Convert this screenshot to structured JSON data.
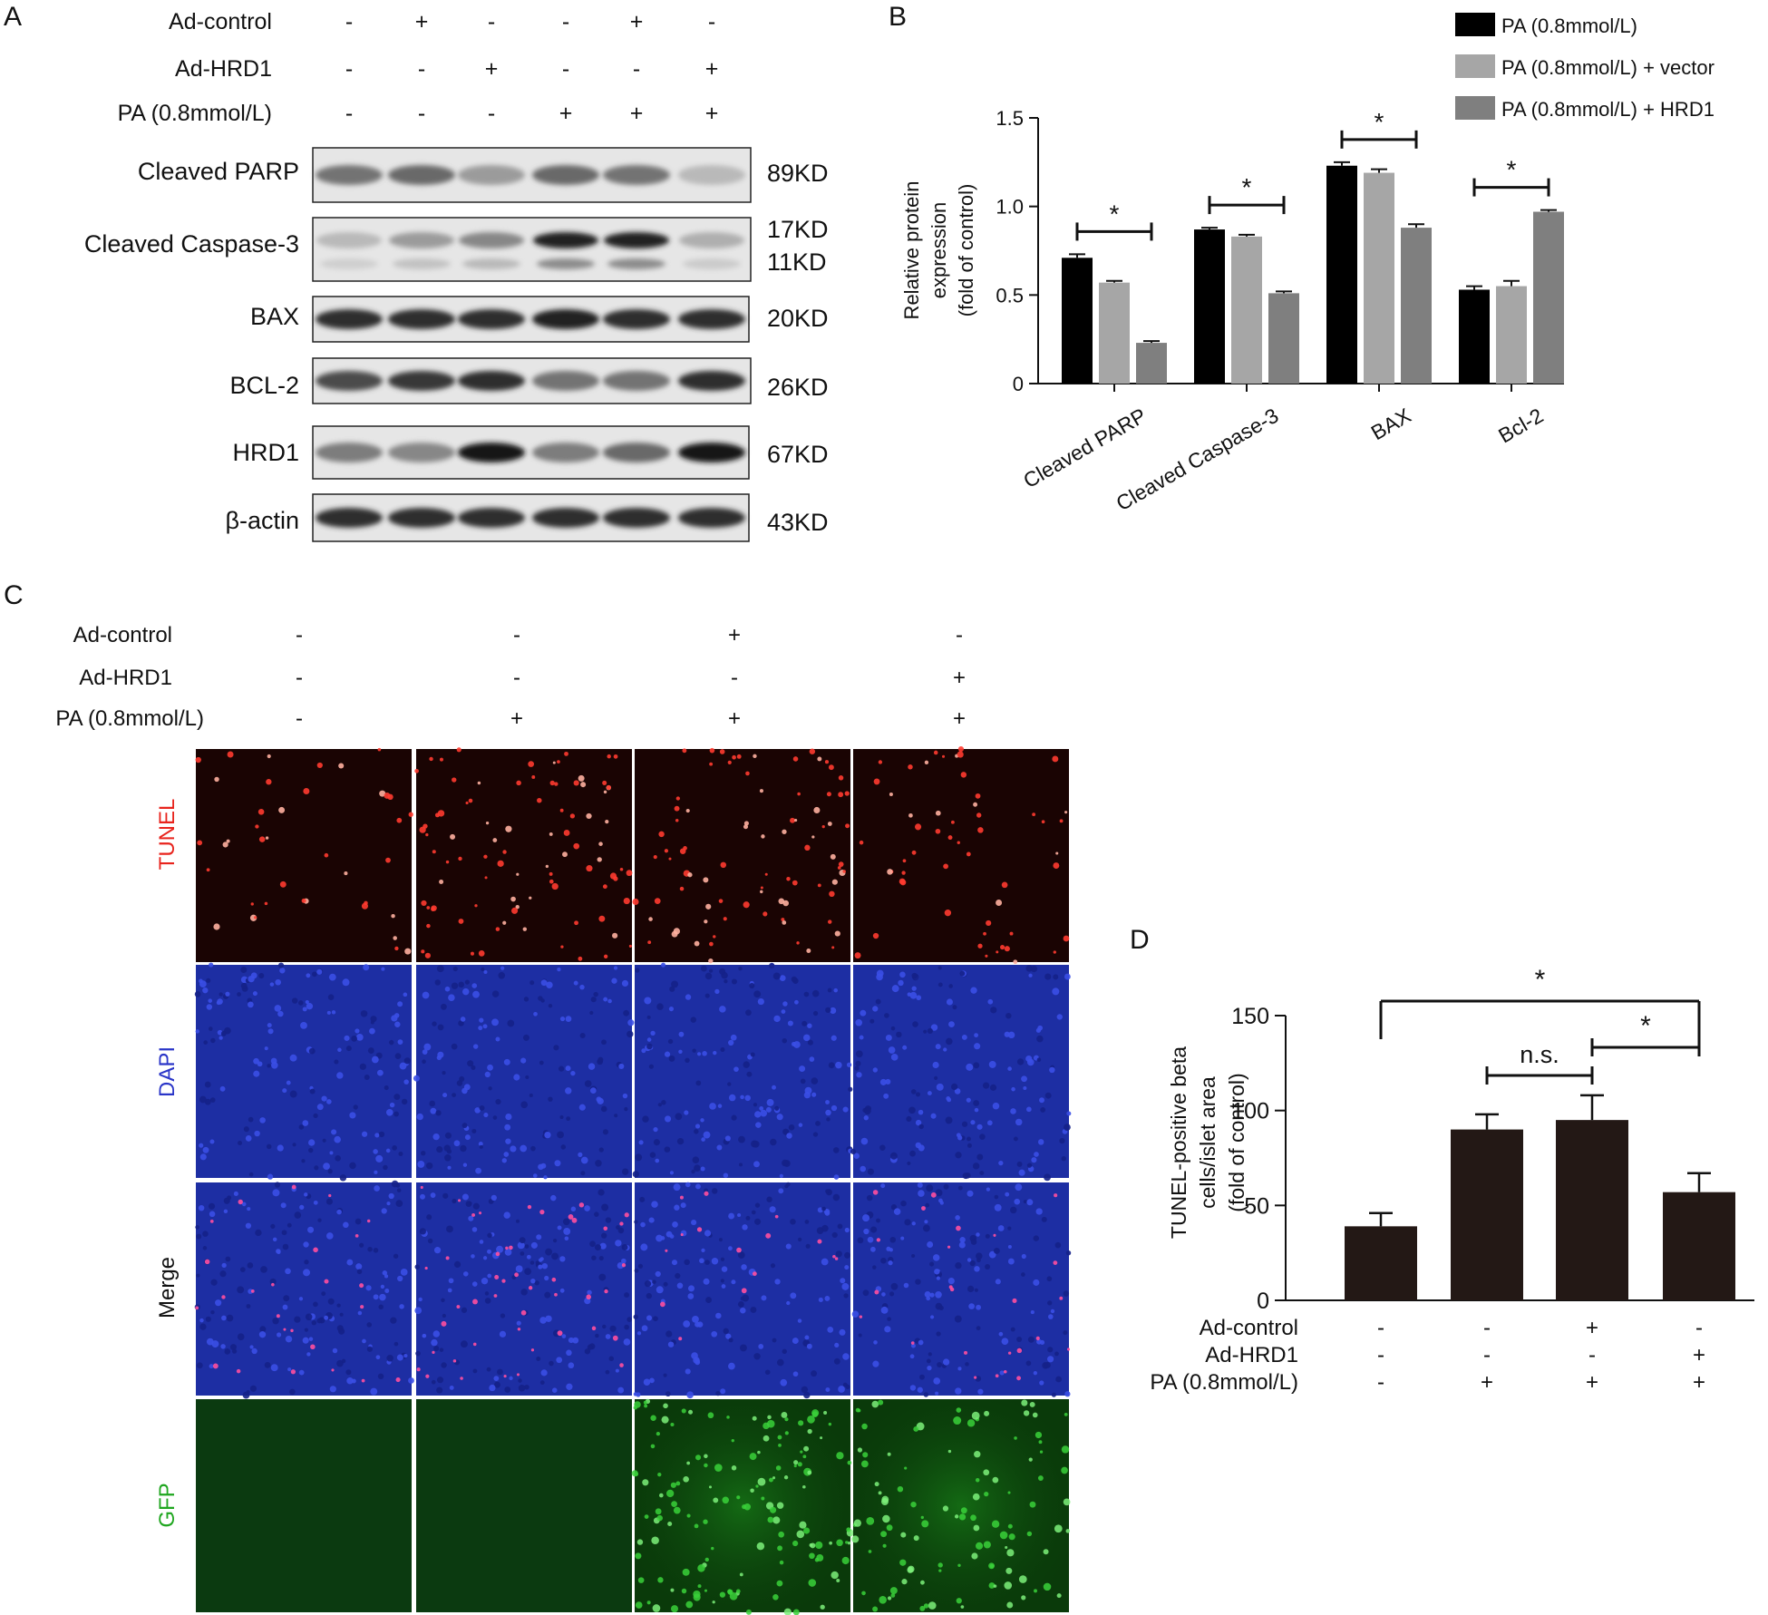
{
  "panels": {
    "a": "A",
    "b": "B",
    "c": "C",
    "d": "D"
  },
  "blot": {
    "conditions": [
      {
        "label": "Ad-control",
        "signs": [
          "-",
          "+",
          "-",
          "-",
          "+",
          "-"
        ]
      },
      {
        "label": "Ad-HRD1",
        "signs": [
          "-",
          "-",
          "+",
          "-",
          "-",
          "+"
        ]
      },
      {
        "label": "PA (0.8mmol/L)",
        "signs": [
          "-",
          "-",
          "-",
          "+",
          "+",
          "+"
        ]
      }
    ],
    "rows": [
      {
        "label": "Cleaved PARP",
        "kd": [
          "89KD"
        ],
        "band": [
          0.55,
          0.6,
          0.35,
          0.6,
          0.55,
          0.2
        ]
      },
      {
        "label": "Cleaved Caspase-3",
        "kd": [
          "17KD",
          "11KD"
        ],
        "band": [
          0.2,
          0.35,
          0.45,
          0.95,
          0.95,
          0.25
        ]
      },
      {
        "label": "BAX",
        "kd": [
          "20KD"
        ],
        "band": [
          0.9,
          0.9,
          0.9,
          0.95,
          0.9,
          0.9
        ]
      },
      {
        "label": "BCL-2",
        "kd": [
          "26KD"
        ],
        "band": [
          0.75,
          0.85,
          0.9,
          0.55,
          0.55,
          0.9
        ]
      },
      {
        "label": "HRD1",
        "kd": [
          "67KD"
        ],
        "band": [
          0.5,
          0.45,
          1.0,
          0.5,
          0.6,
          1.0
        ]
      },
      {
        "label": "β-actin",
        "kd": [
          "43KD"
        ],
        "band": [
          0.9,
          0.9,
          0.9,
          0.9,
          0.9,
          0.9
        ]
      }
    ]
  },
  "chart_b": {
    "type": "bar",
    "ylabel_lines": [
      "Relative protein",
      "expression",
      "(fold of control)"
    ],
    "ylim": [
      0,
      1.5
    ],
    "yticks": [
      "0",
      "0.5",
      "1.0",
      "1.5"
    ],
    "categories": [
      "Cleaved PARP",
      "Cleaved Caspase-3",
      "BAX",
      "Bcl-2"
    ],
    "series": [
      {
        "name": "PA (0.8mmol/L)",
        "color": "#000000",
        "values": [
          0.71,
          0.87,
          1.23,
          0.53
        ],
        "errors": [
          0.02,
          0.01,
          0.02,
          0.02
        ]
      },
      {
        "name": "PA (0.8mmol/L) + vector",
        "color": "#a6a6a6",
        "values": [
          0.57,
          0.83,
          1.19,
          0.55
        ],
        "errors": [
          0.01,
          0.01,
          0.02,
          0.03
        ]
      },
      {
        "name": "PA (0.8mmol/L) + HRD1",
        "color": "#7f7f7f",
        "values": [
          0.23,
          0.51,
          0.88,
          0.97
        ],
        "errors": [
          0.01,
          0.01,
          0.02,
          0.01
        ]
      }
    ],
    "significance": [
      "*",
      "*",
      "*",
      "*"
    ],
    "legend_position": "top-right"
  },
  "microscopy": {
    "conditions": [
      {
        "label": "Ad-control",
        "signs": [
          "-",
          "-",
          "+",
          "-"
        ]
      },
      {
        "label": "Ad-HRD1",
        "signs": [
          "-",
          "-",
          "-",
          "+"
        ]
      },
      {
        "label": "PA (0.8mmol/L)",
        "signs": [
          "-",
          "+",
          "+",
          "+"
        ]
      }
    ],
    "rows": [
      {
        "label": "TUNEL",
        "color": "#e8231c"
      },
      {
        "label": "DAPI",
        "color": "#2a35c8"
      },
      {
        "label": "Merge",
        "color": "#111111"
      },
      {
        "label": "GFP",
        "color": "#1fa61f"
      }
    ]
  },
  "chart_d": {
    "type": "bar",
    "ylabel_lines": [
      "TUNEL-positive beta",
      "cells/islet area",
      "(fold of control)"
    ],
    "ylim": [
      0,
      150
    ],
    "yticks": [
      "0",
      "50",
      "100",
      "150"
    ],
    "bar_color": "#231815",
    "values": [
      39,
      90,
      95,
      57
    ],
    "errors": [
      7,
      8,
      13,
      10
    ],
    "conditions": [
      {
        "label": "Ad-control",
        "signs": [
          "-",
          "-",
          "+",
          "-"
        ]
      },
      {
        "label": "Ad-HRD1",
        "signs": [
          "-",
          "-",
          "-",
          "+"
        ]
      },
      {
        "label": "PA (0.8mmol/L)",
        "signs": [
          "-",
          "+",
          "+",
          "+"
        ]
      }
    ],
    "significance": [
      {
        "from": 1,
        "to": 2,
        "text": "n.s."
      },
      {
        "from": 2,
        "to": 3,
        "text": "*"
      },
      {
        "from": 0,
        "to": 3,
        "text": "*"
      }
    ]
  }
}
